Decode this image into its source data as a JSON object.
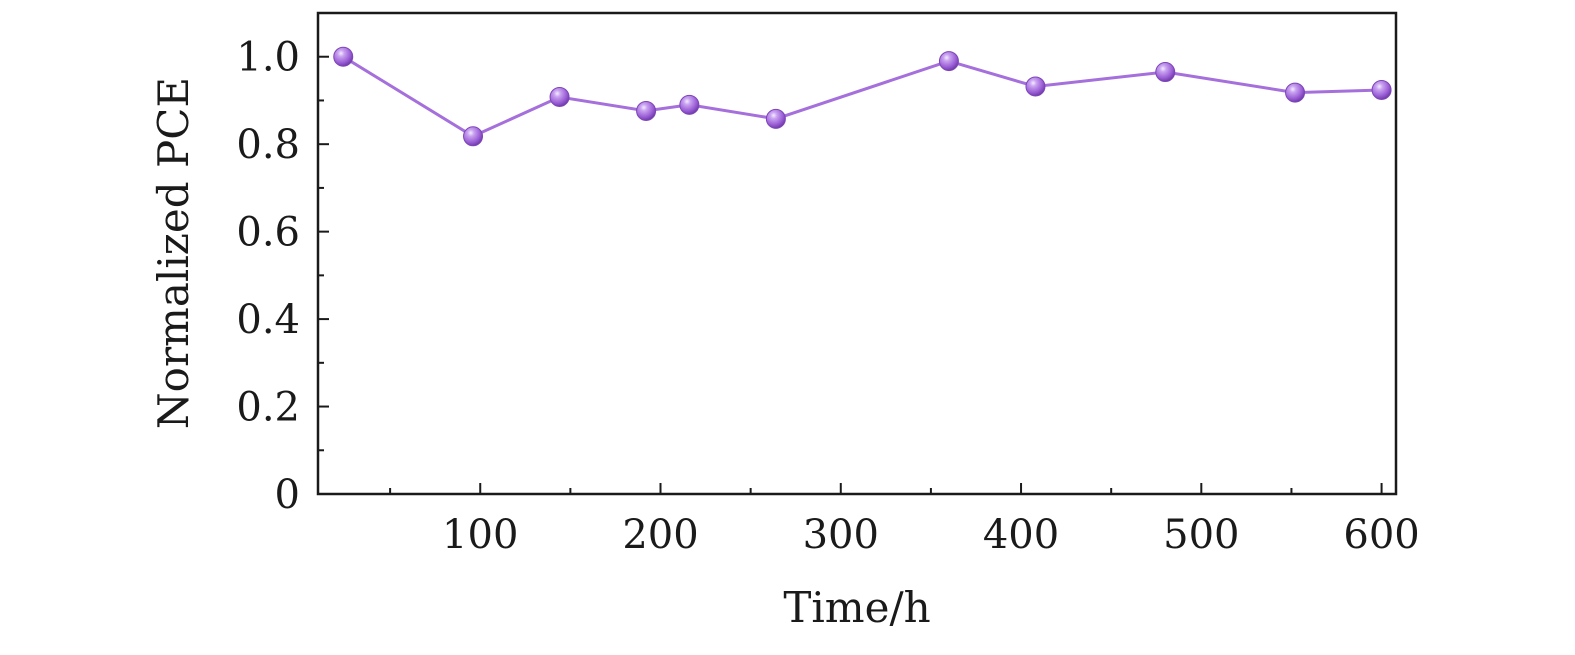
{
  "chart_data": {
    "type": "line",
    "xlabel": "Time/h",
    "ylabel": "Normalized PCE",
    "xlim": [
      10,
      608
    ],
    "ylim": [
      0,
      1.1
    ],
    "xticks": [
      100,
      200,
      300,
      400,
      500,
      600
    ],
    "xminor_ticks": [
      50,
      150,
      250,
      350,
      450,
      550
    ],
    "yticks": [
      0,
      0.2,
      0.4,
      0.6,
      0.8,
      1.0
    ],
    "ytick_labels": [
      "0",
      "0.2",
      "0.4",
      "0.6",
      "0.8",
      "1.0"
    ],
    "yminor_ticks": [
      0.1,
      0.3,
      0.5,
      0.7,
      0.9
    ],
    "grid": false,
    "legend": "none",
    "series": [
      {
        "color": "#a56fdc",
        "marker": "sphere",
        "x": [
          24,
          96,
          144,
          192,
          216,
          264,
          360,
          408,
          480,
          552,
          600
        ],
        "y": [
          1.0,
          0.818,
          0.908,
          0.876,
          0.89,
          0.858,
          0.99,
          0.932,
          0.965,
          0.918,
          0.924
        ]
      }
    ]
  }
}
